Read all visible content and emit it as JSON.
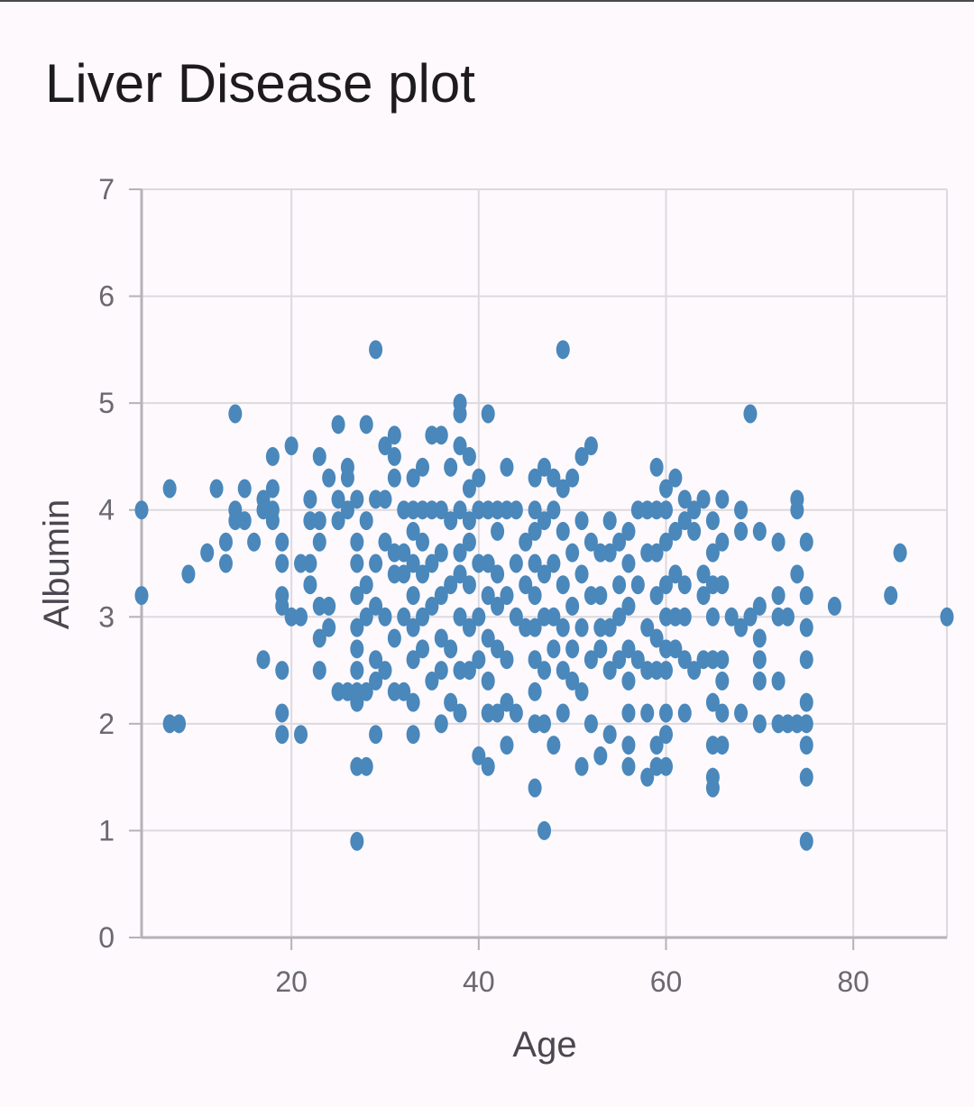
{
  "title": "Liver Disease plot",
  "chart_data": {
    "type": "scatter",
    "xlabel": "Age",
    "ylabel": "Albumin",
    "xlim": [
      4,
      90
    ],
    "ylim": [
      0,
      7
    ],
    "xticks": [
      20,
      40,
      60,
      80
    ],
    "yticks": [
      0,
      1,
      2,
      3,
      4,
      5,
      6,
      7
    ],
    "grid": true,
    "point_color": "#4a87bb",
    "points": [
      [
        4,
        4.0
      ],
      [
        4,
        3.2
      ],
      [
        7,
        2.0
      ],
      [
        8,
        2.0
      ],
      [
        7,
        4.2
      ],
      [
        9,
        3.4
      ],
      [
        11,
        3.6
      ],
      [
        12,
        4.2
      ],
      [
        13,
        3.7
      ],
      [
        13,
        3.5
      ],
      [
        14,
        4.9
      ],
      [
        14,
        4.0
      ],
      [
        14,
        3.9
      ],
      [
        15,
        4.2
      ],
      [
        15,
        3.9
      ],
      [
        16,
        3.7
      ],
      [
        17,
        4.1
      ],
      [
        17,
        4.0
      ],
      [
        17,
        2.6
      ],
      [
        18,
        4.5
      ],
      [
        18,
        4.2
      ],
      [
        18,
        4.0
      ],
      [
        18,
        3.9
      ],
      [
        19,
        3.7
      ],
      [
        19,
        3.5
      ],
      [
        19,
        3.2
      ],
      [
        19,
        3.1
      ],
      [
        19,
        2.5
      ],
      [
        19,
        2.1
      ],
      [
        19,
        1.9
      ],
      [
        20,
        4.6
      ],
      [
        20,
        3.0
      ],
      [
        21,
        3.0
      ],
      [
        21,
        3.5
      ],
      [
        21,
        1.9
      ],
      [
        22,
        4.1
      ],
      [
        22,
        3.9
      ],
      [
        22,
        3.5
      ],
      [
        22,
        3.3
      ],
      [
        23,
        4.5
      ],
      [
        23,
        3.9
      ],
      [
        23,
        3.7
      ],
      [
        23,
        3.1
      ],
      [
        23,
        2.8
      ],
      [
        23,
        2.5
      ],
      [
        24,
        4.3
      ],
      [
        24,
        3.1
      ],
      [
        24,
        2.9
      ],
      [
        25,
        4.8
      ],
      [
        25,
        4.1
      ],
      [
        25,
        3.9
      ],
      [
        25,
        2.3
      ],
      [
        26,
        4.4
      ],
      [
        26,
        4.3
      ],
      [
        26,
        4.0
      ],
      [
        26,
        2.3
      ],
      [
        27,
        4.1
      ],
      [
        27,
        3.7
      ],
      [
        27,
        3.5
      ],
      [
        27,
        3.2
      ],
      [
        27,
        2.9
      ],
      [
        27,
        2.7
      ],
      [
        27,
        2.5
      ],
      [
        27,
        2.3
      ],
      [
        27,
        2.2
      ],
      [
        27,
        1.6
      ],
      [
        27,
        0.9
      ],
      [
        28,
        4.8
      ],
      [
        28,
        3.9
      ],
      [
        28,
        3.3
      ],
      [
        28,
        3.0
      ],
      [
        28,
        2.3
      ],
      [
        28,
        1.6
      ],
      [
        29,
        5.5
      ],
      [
        29,
        4.1
      ],
      [
        29,
        3.5
      ],
      [
        29,
        3.1
      ],
      [
        29,
        2.6
      ],
      [
        29,
        2.4
      ],
      [
        29,
        1.9
      ],
      [
        30,
        4.6
      ],
      [
        30,
        4.1
      ],
      [
        30,
        3.7
      ],
      [
        30,
        3.0
      ],
      [
        30,
        2.5
      ],
      [
        31,
        4.7
      ],
      [
        31,
        4.5
      ],
      [
        31,
        4.3
      ],
      [
        31,
        3.6
      ],
      [
        31,
        3.4
      ],
      [
        31,
        2.8
      ],
      [
        31,
        2.3
      ],
      [
        32,
        4.0
      ],
      [
        32,
        3.6
      ],
      [
        32,
        3.4
      ],
      [
        32,
        3.0
      ],
      [
        32,
        2.3
      ],
      [
        33,
        4.3
      ],
      [
        33,
        4.0
      ],
      [
        33,
        3.8
      ],
      [
        33,
        3.5
      ],
      [
        33,
        3.2
      ],
      [
        33,
        2.9
      ],
      [
        33,
        2.6
      ],
      [
        33,
        2.2
      ],
      [
        33,
        1.9
      ],
      [
        34,
        4.4
      ],
      [
        34,
        4.0
      ],
      [
        34,
        3.7
      ],
      [
        34,
        3.4
      ],
      [
        34,
        3.0
      ],
      [
        34,
        2.7
      ],
      [
        35,
        4.7
      ],
      [
        35,
        4.0
      ],
      [
        35,
        3.5
      ],
      [
        35,
        3.1
      ],
      [
        35,
        2.4
      ],
      [
        36,
        4.7
      ],
      [
        36,
        4.0
      ],
      [
        36,
        3.6
      ],
      [
        36,
        3.2
      ],
      [
        36,
        2.8
      ],
      [
        36,
        2.5
      ],
      [
        36,
        2.0
      ],
      [
        37,
        4.4
      ],
      [
        37,
        3.9
      ],
      [
        37,
        3.3
      ],
      [
        37,
        2.7
      ],
      [
        37,
        2.2
      ],
      [
        38,
        5.0
      ],
      [
        38,
        4.9
      ],
      [
        38,
        4.6
      ],
      [
        38,
        4.0
      ],
      [
        38,
        3.6
      ],
      [
        38,
        3.4
      ],
      [
        38,
        3.0
      ],
      [
        38,
        2.5
      ],
      [
        38,
        2.1
      ],
      [
        39,
        4.5
      ],
      [
        39,
        4.2
      ],
      [
        39,
        3.9
      ],
      [
        39,
        3.7
      ],
      [
        39,
        3.3
      ],
      [
        39,
        2.9
      ],
      [
        39,
        2.5
      ],
      [
        40,
        4.3
      ],
      [
        40,
        4.0
      ],
      [
        40,
        3.5
      ],
      [
        40,
        3.0
      ],
      [
        40,
        2.6
      ],
      [
        40,
        1.7
      ],
      [
        41,
        4.9
      ],
      [
        41,
        4.0
      ],
      [
        41,
        3.5
      ],
      [
        41,
        3.2
      ],
      [
        41,
        2.8
      ],
      [
        41,
        2.4
      ],
      [
        41,
        2.1
      ],
      [
        41,
        1.6
      ],
      [
        42,
        4.0
      ],
      [
        42,
        3.8
      ],
      [
        42,
        3.4
      ],
      [
        42,
        3.1
      ],
      [
        42,
        2.7
      ],
      [
        42,
        2.1
      ],
      [
        43,
        4.4
      ],
      [
        43,
        4.0
      ],
      [
        43,
        3.2
      ],
      [
        43,
        2.6
      ],
      [
        43,
        2.2
      ],
      [
        43,
        1.8
      ],
      [
        44,
        4.0
      ],
      [
        44,
        3.5
      ],
      [
        44,
        3.0
      ],
      [
        44,
        2.1
      ],
      [
        45,
        3.7
      ],
      [
        45,
        3.3
      ],
      [
        45,
        2.9
      ],
      [
        46,
        4.3
      ],
      [
        46,
        4.0
      ],
      [
        46,
        3.8
      ],
      [
        46,
        3.5
      ],
      [
        46,
        3.2
      ],
      [
        46,
        2.9
      ],
      [
        46,
        2.6
      ],
      [
        46,
        2.3
      ],
      [
        46,
        2.0
      ],
      [
        46,
        1.4
      ],
      [
        47,
        4.4
      ],
      [
        47,
        3.9
      ],
      [
        47,
        3.4
      ],
      [
        47,
        3.0
      ],
      [
        47,
        2.5
      ],
      [
        47,
        2.0
      ],
      [
        47,
        1.0
      ],
      [
        48,
        4.3
      ],
      [
        48,
        4.0
      ],
      [
        48,
        3.5
      ],
      [
        48,
        3.0
      ],
      [
        48,
        2.7
      ],
      [
        48,
        1.8
      ],
      [
        49,
        5.5
      ],
      [
        49,
        4.2
      ],
      [
        49,
        3.8
      ],
      [
        49,
        3.3
      ],
      [
        49,
        2.9
      ],
      [
        49,
        2.5
      ],
      [
        49,
        2.1
      ],
      [
        50,
        4.3
      ],
      [
        50,
        3.6
      ],
      [
        50,
        3.1
      ],
      [
        50,
        2.7
      ],
      [
        50,
        2.4
      ],
      [
        51,
        4.5
      ],
      [
        51,
        3.9
      ],
      [
        51,
        3.4
      ],
      [
        51,
        2.9
      ],
      [
        51,
        2.3
      ],
      [
        51,
        1.6
      ],
      [
        52,
        4.6
      ],
      [
        52,
        3.7
      ],
      [
        52,
        3.2
      ],
      [
        52,
        2.6
      ],
      [
        52,
        2.0
      ],
      [
        53,
        3.6
      ],
      [
        53,
        3.2
      ],
      [
        53,
        2.9
      ],
      [
        53,
        2.7
      ],
      [
        53,
        1.7
      ],
      [
        54,
        3.9
      ],
      [
        54,
        3.6
      ],
      [
        54,
        2.9
      ],
      [
        54,
        2.5
      ],
      [
        54,
        1.9
      ],
      [
        55,
        3.7
      ],
      [
        55,
        3.3
      ],
      [
        55,
        3.0
      ],
      [
        55,
        2.6
      ],
      [
        56,
        3.8
      ],
      [
        56,
        3.5
      ],
      [
        56,
        3.1
      ],
      [
        56,
        2.7
      ],
      [
        56,
        2.4
      ],
      [
        56,
        2.1
      ],
      [
        56,
        1.8
      ],
      [
        56,
        1.6
      ],
      [
        57,
        4.0
      ],
      [
        57,
        3.3
      ],
      [
        57,
        2.6
      ],
      [
        58,
        4.0
      ],
      [
        58,
        3.6
      ],
      [
        58,
        2.9
      ],
      [
        58,
        2.5
      ],
      [
        58,
        2.1
      ],
      [
        58,
        1.5
      ],
      [
        59,
        4.4
      ],
      [
        59,
        4.0
      ],
      [
        59,
        3.6
      ],
      [
        59,
        3.2
      ],
      [
        59,
        2.8
      ],
      [
        59,
        2.5
      ],
      [
        59,
        1.8
      ],
      [
        59,
        1.6
      ],
      [
        60,
        4.2
      ],
      [
        60,
        4.0
      ],
      [
        60,
        3.7
      ],
      [
        60,
        3.3
      ],
      [
        60,
        3.0
      ],
      [
        60,
        2.7
      ],
      [
        60,
        2.5
      ],
      [
        60,
        2.1
      ],
      [
        60,
        1.9
      ],
      [
        60,
        1.6
      ],
      [
        61,
        4.3
      ],
      [
        61,
        3.8
      ],
      [
        61,
        3.4
      ],
      [
        61,
        3.0
      ],
      [
        61,
        2.7
      ],
      [
        62,
        4.1
      ],
      [
        62,
        3.9
      ],
      [
        62,
        3.3
      ],
      [
        62,
        3.0
      ],
      [
        62,
        2.6
      ],
      [
        62,
        2.1
      ],
      [
        63,
        4.0
      ],
      [
        63,
        3.8
      ],
      [
        63,
        2.5
      ],
      [
        64,
        4.1
      ],
      [
        64,
        3.4
      ],
      [
        64,
        3.2
      ],
      [
        64,
        2.6
      ],
      [
        65,
        3.9
      ],
      [
        65,
        3.6
      ],
      [
        65,
        3.3
      ],
      [
        65,
        3.0
      ],
      [
        65,
        2.6
      ],
      [
        65,
        2.2
      ],
      [
        65,
        1.8
      ],
      [
        65,
        1.5
      ],
      [
        65,
        1.4
      ],
      [
        66,
        4.1
      ],
      [
        66,
        3.7
      ],
      [
        66,
        3.3
      ],
      [
        66,
        2.6
      ],
      [
        66,
        2.4
      ],
      [
        66,
        2.1
      ],
      [
        66,
        1.8
      ],
      [
        67,
        3.0
      ],
      [
        68,
        4.0
      ],
      [
        68,
        3.8
      ],
      [
        68,
        2.9
      ],
      [
        68,
        2.1
      ],
      [
        69,
        4.9
      ],
      [
        69,
        3.0
      ],
      [
        70,
        3.8
      ],
      [
        70,
        3.1
      ],
      [
        70,
        2.8
      ],
      [
        70,
        2.6
      ],
      [
        70,
        2.4
      ],
      [
        70,
        2.0
      ],
      [
        72,
        3.7
      ],
      [
        72,
        3.2
      ],
      [
        72,
        3.0
      ],
      [
        72,
        2.4
      ],
      [
        72,
        2.0
      ],
      [
        73,
        3.0
      ],
      [
        73,
        2.0
      ],
      [
        74,
        4.1
      ],
      [
        74,
        4.0
      ],
      [
        74,
        3.4
      ],
      [
        74,
        2.0
      ],
      [
        75,
        3.7
      ],
      [
        75,
        3.2
      ],
      [
        75,
        2.9
      ],
      [
        75,
        2.6
      ],
      [
        75,
        2.2
      ],
      [
        75,
        2.0
      ],
      [
        75,
        1.8
      ],
      [
        75,
        1.5
      ],
      [
        75,
        0.9
      ],
      [
        78,
        3.1
      ],
      [
        84,
        3.2
      ],
      [
        85,
        3.6
      ],
      [
        90,
        3.0
      ]
    ]
  }
}
